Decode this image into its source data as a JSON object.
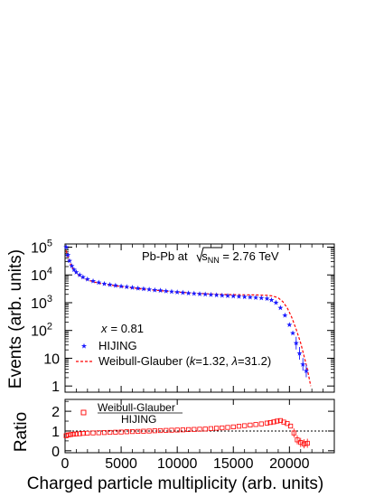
{
  "chart_data": [
    {
      "type": "scatter",
      "title": "Pb-Pb at √sNN = 2.76 TeV",
      "title_parts": {
        "prefix": "Pb-Pb at ",
        "sqrt_base": "s",
        "sqrt_sub": "NN",
        "suffix": " = 2.76 TeV"
      },
      "annotation": {
        "var": "x",
        "value": "= 0.81"
      },
      "xlabel": "",
      "ylabel": "Events (arb. units)",
      "xlim": [
        0,
        24000
      ],
      "ylim": [
        0.6,
        130000
      ],
      "log_y": true,
      "grid": false,
      "y_ticks": [
        1,
        10,
        100,
        1000,
        10000,
        100000
      ],
      "y_tick_labels": [
        {
          "base": "1",
          "exp": ""
        },
        {
          "base": "10",
          "exp": ""
        },
        {
          "base": "10",
          "exp": "2"
        },
        {
          "base": "10",
          "exp": "3"
        },
        {
          "base": "10",
          "exp": "4"
        },
        {
          "base": "10",
          "exp": "5"
        }
      ],
      "legend_placement": "bottom-left",
      "legend": {
        "hijing": "HIJING",
        "wg_prefix": "Weibull-Glauber (",
        "wg_k": "k",
        "wg_k_val": "=1.32, ",
        "wg_lambda": "λ",
        "wg_lambda_val": "=31.2)"
      },
      "series": [
        {
          "name": "HIJING",
          "marker": "star",
          "color": "#1a1aff",
          "x": [
            100,
            250,
            400,
            600,
            800,
            1000,
            1300,
            1600,
            2000,
            2500,
            3000,
            3500,
            4000,
            4500,
            5000,
            5500,
            6000,
            6500,
            7000,
            7500,
            8000,
            8500,
            9000,
            9500,
            10000,
            10500,
            11000,
            11500,
            12000,
            12500,
            13000,
            13500,
            14000,
            14500,
            15000,
            15500,
            16000,
            16500,
            17000,
            17500,
            18000,
            18400,
            18800,
            19200,
            19600,
            20000,
            20300,
            20600,
            20900,
            21200,
            21500
          ],
          "y": [
            100000,
            52000,
            32000,
            21000,
            15500,
            12500,
            10000,
            8300,
            7000,
            6000,
            5300,
            4800,
            4450,
            4150,
            3900,
            3700,
            3500,
            3300,
            3150,
            3000,
            2850,
            2750,
            2620,
            2500,
            2400,
            2300,
            2200,
            2130,
            2060,
            2000,
            1940,
            1880,
            1820,
            1770,
            1720,
            1670,
            1620,
            1570,
            1520,
            1470,
            1400,
            1250,
            1000,
            650,
            350,
            160,
            80,
            35,
            15,
            6,
            3.5
          ]
        },
        {
          "name": "Weibull-Glauber (k=1.32, λ=31.2)",
          "marker": "dashed-line",
          "color": "#ff0000",
          "x": [
            100,
            250,
            400,
            600,
            800,
            1000,
            1300,
            1600,
            2000,
            2500,
            3000,
            4000,
            5000,
            6000,
            7000,
            8000,
            9000,
            10000,
            11000,
            12000,
            13000,
            14000,
            15000,
            16000,
            17000,
            18000,
            18500,
            19000,
            19400,
            19800,
            20200,
            20600,
            21000,
            21300,
            21600,
            21900
          ],
          "y": [
            75000,
            45000,
            29000,
            19500,
            14500,
            11500,
            9200,
            7800,
            6600,
            5700,
            5050,
            4350,
            3800,
            3400,
            3080,
            2820,
            2600,
            2420,
            2270,
            2150,
            2060,
            1990,
            1940,
            1920,
            1900,
            1850,
            1750,
            1500,
            1100,
            650,
            300,
            110,
            35,
            12,
            4,
            1
          ]
        }
      ]
    },
    {
      "type": "scatter",
      "ylabel": "Ratio",
      "xlabel": "Charged particle multiplicity (arb. units)",
      "xlim": [
        0,
        24000
      ],
      "ylim": [
        -0.1,
        2.6
      ],
      "grid": false,
      "x_ticks": [
        0,
        5000,
        10000,
        15000,
        20000
      ],
      "x_tick_labels": [
        "0",
        "5000",
        "10000",
        "15000",
        "20000"
      ],
      "y_ticks": [
        0,
        1,
        2
      ],
      "y_tick_labels": [
        "0",
        "1",
        "2"
      ],
      "reference_line": 1,
      "legend_placement": "top-left",
      "legend": {
        "numerator": "Weibull-Glauber",
        "denominator": "HIJING"
      },
      "series": [
        {
          "name": "Weibull-Glauber / HIJING",
          "marker": "open-square",
          "color": "#ff0000",
          "x": [
            100,
            300,
            500,
            750,
            1000,
            1300,
            1600,
            2000,
            2500,
            3000,
            3500,
            4000,
            4500,
            5000,
            5500,
            6000,
            6500,
            7000,
            7500,
            8000,
            8500,
            9000,
            9500,
            10000,
            10500,
            11000,
            11500,
            12000,
            12500,
            13000,
            13500,
            14000,
            14500,
            15000,
            15500,
            16000,
            16500,
            17000,
            17500,
            18000,
            18300,
            18600,
            18900,
            19200,
            19500,
            19800,
            20100,
            20400,
            20700,
            21000,
            21300,
            21600
          ],
          "y": [
            0.76,
            0.8,
            0.82,
            0.84,
            0.85,
            0.86,
            0.88,
            0.89,
            0.9,
            0.91,
            0.92,
            0.93,
            0.94,
            0.95,
            0.96,
            0.97,
            0.98,
            0.99,
            1.0,
            1.01,
            1.02,
            1.03,
            1.04,
            1.05,
            1.06,
            1.07,
            1.08,
            1.09,
            1.1,
            1.12,
            1.14,
            1.16,
            1.18,
            1.21,
            1.24,
            1.27,
            1.3,
            1.33,
            1.36,
            1.4,
            1.43,
            1.46,
            1.5,
            1.53,
            1.45,
            1.38,
            1.25,
            0.9,
            0.55,
            0.42,
            0.35,
            0.38
          ]
        }
      ]
    }
  ]
}
